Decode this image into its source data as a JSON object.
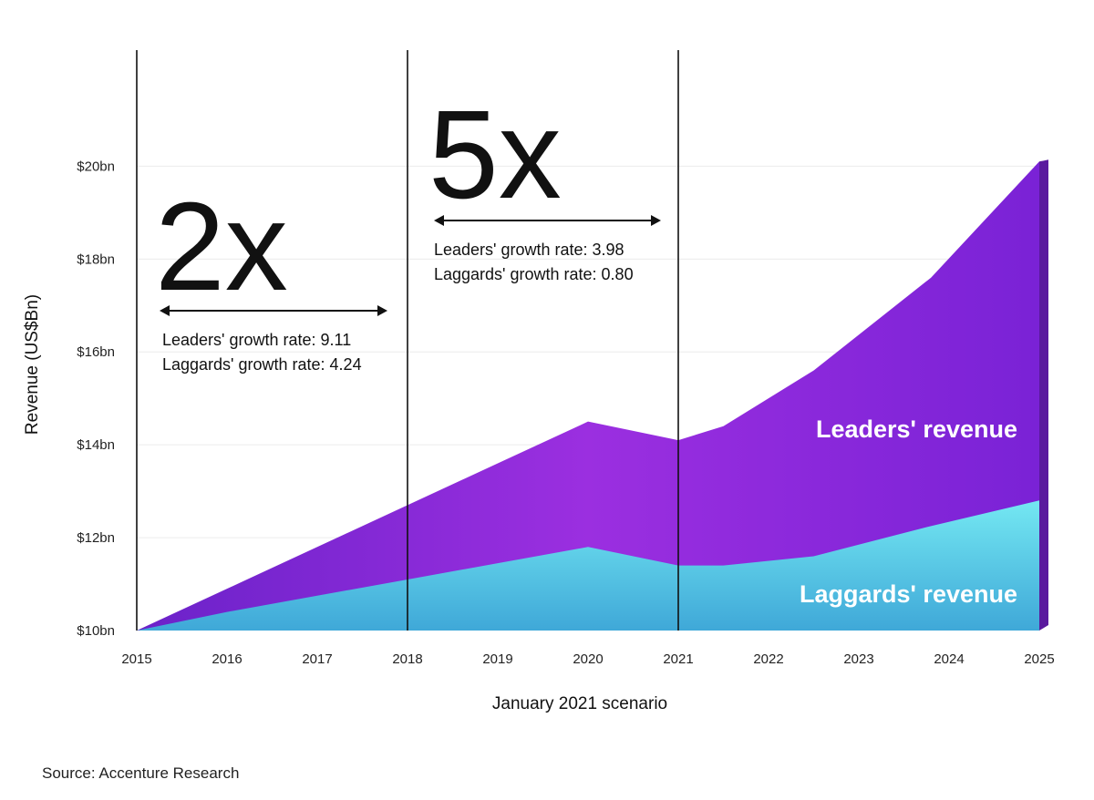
{
  "chart_data": {
    "type": "area",
    "xlabel": "January 2021 scenario",
    "ylabel": "Revenue (US$Bn)",
    "x": [
      2015,
      2016,
      2017,
      2018,
      2019,
      2020,
      2021,
      2021.5,
      2022.5,
      2023.8,
      2025
    ],
    "x_ticks": [
      "2015",
      "2016",
      "2017",
      "2018",
      "2019",
      "2020",
      "2021",
      "2022",
      "2023",
      "2024",
      "2025"
    ],
    "y_ticks": [
      "$10bn",
      "$12bn",
      "$14bn",
      "$16bn",
      "$18bn",
      "$20bn"
    ],
    "y_tick_values": [
      10,
      12,
      14,
      16,
      18,
      20
    ],
    "ylim": [
      10,
      22.5
    ],
    "xlim": [
      2015,
      2025
    ],
    "grid": "horizontal",
    "series": [
      {
        "name": "Leaders' revenue",
        "color": "#8a2be2",
        "values": [
          10,
          10.9,
          11.8,
          12.7,
          13.6,
          14.5,
          14.1,
          14.4,
          15.6,
          17.6,
          20.1
        ]
      },
      {
        "name": "Laggards' revenue",
        "color": "#5fd3e8",
        "values": [
          10,
          10.4,
          10.75,
          11.1,
          11.45,
          11.8,
          11.4,
          11.4,
          11.6,
          12.25,
          12.8
        ]
      }
    ],
    "annotations": {
      "period1": {
        "multiplier": "2x",
        "leaders_rate": "Leaders' growth rate: 9.11",
        "laggards_rate": "Laggards' growth rate: 4.24",
        "x_from": 2015,
        "x_to": 2018
      },
      "period2": {
        "multiplier": "5x",
        "leaders_rate": "Leaders' growth rate: 3.98",
        "laggards_rate": "Laggards' growth rate: 0.80",
        "x_from": 2018,
        "x_to": 2021
      },
      "divider_years": [
        2015,
        2018,
        2021
      ]
    }
  },
  "source": "Source: Accenture Research"
}
